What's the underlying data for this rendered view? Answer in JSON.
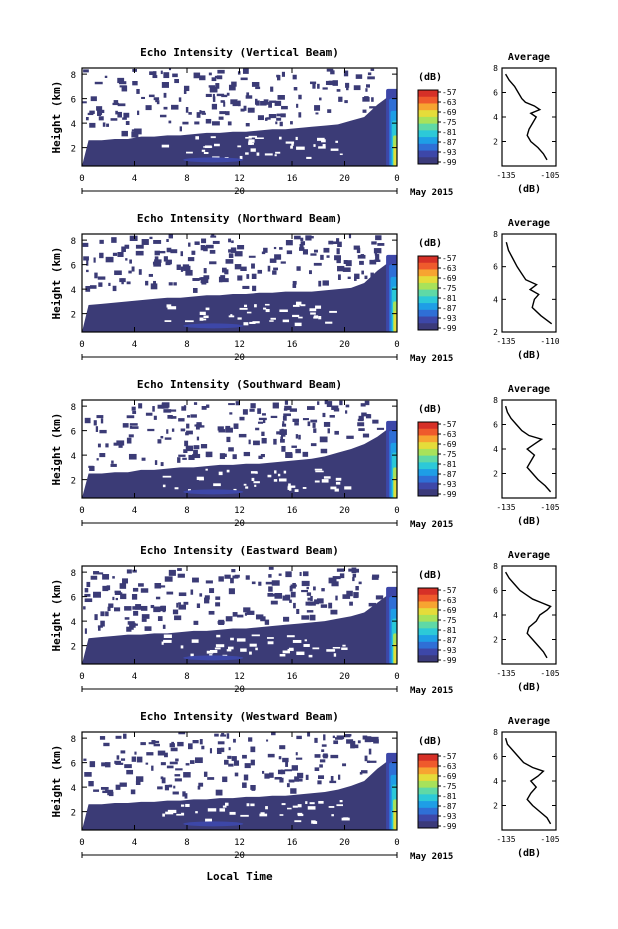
{
  "colors": {
    "colorbar": [
      "#3b3a7a",
      "#3d47a8",
      "#2f6fd6",
      "#1e9ee6",
      "#2cc9d8",
      "#5fd9a6",
      "#a8e25a",
      "#e5dc3a",
      "#f7a431",
      "#ef5a2c",
      "#d63027"
    ],
    "fill": "#3b3b76",
    "axis": "#000000"
  },
  "common": {
    "colorbar_unit": "(dB)",
    "colorbar_ticks": [
      "-57",
      "-63",
      "-69",
      "-75",
      "-81",
      "-87",
      "-93",
      "-99"
    ],
    "time_ticks": [
      "0",
      "4",
      "8",
      "12",
      "16",
      "20",
      "0"
    ],
    "date_tick": "20",
    "date_suffix": "May 2015",
    "xlabel": "Local Time",
    "avg_title": "Average",
    "avg_xlabel": "(dB)"
  },
  "chart_data": [
    {
      "type": "heatmap",
      "title": "Echo Intensity (Vertical Beam)",
      "ylabel": "Height (km)",
      "y_ticks": [
        "2",
        "4",
        "6",
        "8"
      ],
      "ylim": [
        0.5,
        8.5
      ],
      "xlim": [
        0,
        24
      ],
      "cloud_top_km": [
        2.6,
        2.6,
        2.7,
        2.7,
        2.9,
        2.9,
        3.0,
        3.0,
        3.1,
        3.2,
        3.2,
        3.3,
        3.3,
        3.4,
        3.5,
        3.5,
        3.6,
        3.7,
        3.8,
        3.9,
        4.2,
        4.5,
        5.5,
        6.3
      ],
      "avg_profile": {
        "x_ticks": [
          "-135",
          "-105"
        ],
        "xlim": [
          -135,
          -105
        ],
        "ylim": [
          0,
          8
        ],
        "y_ticks": [
          "2",
          "4",
          "6",
          "8"
        ],
        "height": [
          0.5,
          1.0,
          1.5,
          2.0,
          2.5,
          3.0,
          3.5,
          4.0,
          4.3,
          4.6,
          4.9,
          5.2,
          5.5,
          6.0,
          6.5,
          7.0,
          7.5
        ],
        "db": [
          -110,
          -112,
          -115,
          -119,
          -121,
          -120,
          -118,
          -116,
          -119,
          -114,
          -117,
          -122,
          -124,
          -126,
          -128,
          -131,
          -133
        ]
      }
    },
    {
      "type": "heatmap",
      "title": "Echo Intensity (Northward Beam)",
      "ylabel": "Height (km)",
      "y_ticks": [
        "2",
        "4",
        "6",
        "8"
      ],
      "ylim": [
        0.5,
        8.5
      ],
      "xlim": [
        0,
        24
      ],
      "cloud_top_km": [
        2.7,
        2.8,
        2.9,
        3.0,
        3.1,
        3.2,
        3.3,
        3.3,
        3.4,
        3.5,
        3.5,
        3.6,
        3.6,
        3.7,
        3.7,
        3.8,
        3.8,
        3.8,
        3.9,
        4.0,
        4.1,
        4.5,
        5.5,
        6.3
      ],
      "avg_profile": {
        "x_ticks": [
          "-135",
          "-110"
        ],
        "xlim": [
          -135,
          -110
        ],
        "ylim": [
          2,
          8
        ],
        "y_ticks": [
          "2",
          "4",
          "6",
          "8"
        ],
        "height": [
          2.5,
          3.0,
          3.5,
          4.0,
          4.3,
          4.6,
          4.9,
          5.2,
          5.6,
          6.0,
          6.5,
          7.0,
          7.5
        ],
        "db": [
          -112,
          -117,
          -121,
          -120,
          -118,
          -122,
          -119,
          -124,
          -126,
          -128,
          -130,
          -132,
          -133
        ]
      }
    },
    {
      "type": "heatmap",
      "title": "Echo Intensity (Southward Beam)",
      "ylabel": "Height (km)",
      "y_ticks": [
        "2",
        "4",
        "6",
        "8"
      ],
      "ylim": [
        0.5,
        8.5
      ],
      "xlim": [
        0,
        24
      ],
      "cloud_top_km": [
        2.5,
        2.5,
        2.6,
        2.6,
        2.8,
        2.8,
        2.9,
        3.0,
        3.0,
        3.1,
        3.2,
        3.2,
        3.3,
        3.3,
        3.4,
        3.5,
        3.6,
        3.7,
        3.9,
        4.2,
        4.5,
        4.9,
        5.5,
        6.3
      ],
      "avg_profile": {
        "x_ticks": [
          "-135",
          "-105"
        ],
        "xlim": [
          -135,
          -105
        ],
        "ylim": [
          0,
          8
        ],
        "y_ticks": [
          "2",
          "4",
          "6",
          "8"
        ],
        "height": [
          0.5,
          1.0,
          1.5,
          2.0,
          2.5,
          3.0,
          3.5,
          4.0,
          4.4,
          4.8,
          5.1,
          5.5,
          6.0,
          6.5,
          7.0,
          7.5
        ],
        "db": [
          -108,
          -111,
          -115,
          -118,
          -121,
          -119,
          -117,
          -121,
          -117,
          -113,
          -120,
          -124,
          -127,
          -130,
          -132,
          -133
        ]
      }
    },
    {
      "type": "heatmap",
      "title": "Echo Intensity (Eastward Beam)",
      "ylabel": "Height (km)",
      "y_ticks": [
        "2",
        "4",
        "6",
        "8"
      ],
      "ylim": [
        0.5,
        8.5
      ],
      "xlim": [
        0,
        24
      ],
      "cloud_top_km": [
        2.6,
        2.7,
        2.8,
        2.9,
        2.9,
        3.0,
        3.0,
        3.1,
        3.2,
        3.2,
        3.3,
        3.4,
        3.4,
        3.5,
        3.6,
        3.7,
        3.8,
        3.9,
        4.0,
        4.2,
        4.4,
        4.7,
        5.5,
        6.3
      ],
      "avg_profile": {
        "x_ticks": [
          "-135",
          "-105"
        ],
        "xlim": [
          -135,
          -105
        ],
        "ylim": [
          0,
          8
        ],
        "y_ticks": [
          "2",
          "4",
          "6",
          "8"
        ],
        "height": [
          0.5,
          1.0,
          1.5,
          2.0,
          2.5,
          3.0,
          3.5,
          4.0,
          4.4,
          4.7,
          5.0,
          5.3,
          5.7,
          6.0,
          6.5,
          7.0,
          7.5
        ],
        "db": [
          -110,
          -112,
          -115,
          -118,
          -121,
          -120,
          -116,
          -114,
          -110,
          -108,
          -113,
          -118,
          -122,
          -125,
          -128,
          -131,
          -133
        ]
      }
    },
    {
      "type": "heatmap",
      "title": "Echo Intensity (Westward Beam)",
      "ylabel": "Height (km)",
      "y_ticks": [
        "2",
        "4",
        "6",
        "8"
      ],
      "ylim": [
        0.5,
        8.5
      ],
      "xlim": [
        0,
        24
      ],
      "cloud_top_km": [
        2.6,
        2.6,
        2.7,
        2.7,
        2.8,
        2.8,
        2.9,
        2.9,
        3.0,
        3.0,
        3.1,
        3.1,
        3.2,
        3.2,
        3.3,
        3.3,
        3.4,
        3.5,
        3.6,
        3.8,
        4.1,
        4.5,
        5.5,
        6.3
      ],
      "avg_profile": {
        "x_ticks": [
          "-135",
          "-105"
        ],
        "xlim": [
          -135,
          -105
        ],
        "ylim": [
          0,
          8
        ],
        "y_ticks": [
          "2",
          "4",
          "6",
          "8"
        ],
        "height": [
          0.5,
          1.0,
          1.5,
          2.0,
          2.5,
          3.0,
          3.5,
          4.0,
          4.4,
          4.8,
          5.1,
          5.5,
          6.0,
          6.5,
          7.0,
          7.5
        ],
        "db": [
          -108,
          -110,
          -114,
          -118,
          -121,
          -119,
          -116,
          -119,
          -115,
          -112,
          -118,
          -123,
          -126,
          -129,
          -132,
          -133
        ]
      }
    }
  ]
}
